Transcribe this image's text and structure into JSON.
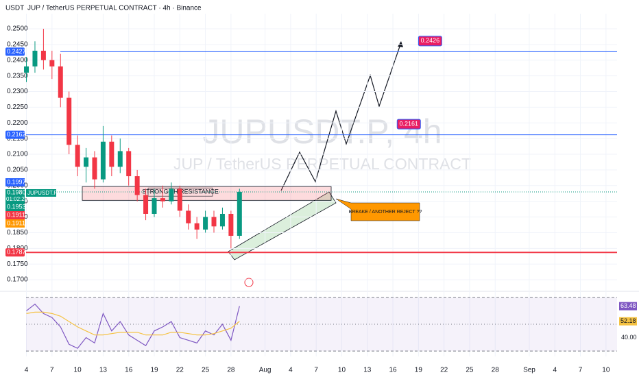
{
  "chart_data": {
    "type": "candlestick",
    "header": "JUP / TetherUS PERPETUAL CONTRACT · 4h · Binance",
    "currency": "USDT",
    "watermark": "JUPUSDT.P, 4h",
    "watermark_subtitle": "JUP / TetherUS PERPETUAL CONTRACT",
    "up_color": "#089981",
    "down_color": "#f23645",
    "x": [
      4,
      5,
      6,
      7,
      8,
      9,
      10,
      11,
      12,
      13,
      14,
      15,
      16,
      17,
      18,
      19,
      20,
      21,
      22,
      23,
      24,
      25,
      26,
      27,
      28,
      29
    ],
    "open": [
      0.236,
      0.238,
      0.243,
      0.24,
      0.238,
      0.228,
      0.213,
      0.206,
      0.209,
      0.202,
      0.214,
      0.206,
      0.211,
      0.203,
      0.197,
      0.191,
      0.196,
      0.195,
      0.199,
      0.192,
      0.188,
      0.186,
      0.19,
      0.187,
      0.191,
      0.184
    ],
    "high": [
      0.241,
      0.246,
      0.25,
      0.243,
      0.242,
      0.23,
      0.216,
      0.212,
      0.211,
      0.219,
      0.216,
      0.215,
      0.212,
      0.205,
      0.199,
      0.199,
      0.2,
      0.201,
      0.2,
      0.194,
      0.19,
      0.192,
      0.192,
      0.193,
      0.192,
      0.199
    ],
    "low": [
      0.233,
      0.236,
      0.237,
      0.234,
      0.225,
      0.21,
      0.203,
      0.201,
      0.199,
      0.201,
      0.203,
      0.204,
      0.2,
      0.195,
      0.189,
      0.19,
      0.193,
      0.194,
      0.19,
      0.186,
      0.183,
      0.185,
      0.185,
      0.186,
      0.18,
      0.183
    ],
    "close": [
      0.238,
      0.243,
      0.24,
      0.238,
      0.228,
      0.213,
      0.206,
      0.209,
      0.202,
      0.214,
      0.206,
      0.211,
      0.203,
      0.197,
      0.191,
      0.196,
      0.195,
      0.199,
      0.192,
      0.188,
      0.186,
      0.19,
      0.187,
      0.191,
      0.184,
      0.198
    ],
    "xlim": [
      0.9,
      73.3
    ],
    "ylim": [
      0.1674,
      0.2548
    ],
    "xticks": [
      4,
      7,
      10,
      13,
      16,
      19,
      22,
      25,
      28,
      {
        "value": 32,
        "label": "Aug"
      },
      {
        "value": 35,
        "label": "4"
      },
      {
        "value": 38,
        "label": "7"
      },
      {
        "value": 41,
        "label": "10"
      },
      {
        "value": 44,
        "label": "13"
      },
      {
        "value": 47,
        "label": "16"
      },
      {
        "value": 50,
        "label": "19"
      },
      {
        "value": 53,
        "label": "22"
      },
      {
        "value": 56,
        "label": "25"
      },
      {
        "value": 59,
        "label": "28"
      },
      {
        "value": 63,
        "label": "Sep"
      },
      {
        "value": 66,
        "label": "4"
      },
      {
        "value": 69,
        "label": "7"
      },
      {
        "value": 72,
        "label": "10"
      }
    ],
    "yticks": [
      {
        "value": 0.17,
        "label": "0.1700"
      },
      {
        "value": 0.175,
        "label": "0.1750"
      },
      {
        "value": 0.18,
        "label": "0.1800"
      },
      {
        "value": 0.185,
        "label": "0.1850"
      },
      {
        "value": 0.19,
        "label": "0.1900"
      },
      {
        "value": 0.195,
        "label": "0.1950"
      },
      {
        "value": 0.2,
        "label": "0.2000"
      },
      {
        "value": 0.205,
        "label": "0.2050"
      },
      {
        "value": 0.21,
        "label": "0.2100"
      },
      {
        "value": 0.215,
        "label": "0.2150"
      },
      {
        "value": 0.22,
        "label": "0.2200"
      },
      {
        "value": 0.225,
        "label": "0.2250"
      },
      {
        "value": 0.23,
        "label": "0.2300"
      },
      {
        "value": 0.235,
        "label": "0.2350"
      },
      {
        "value": 0.24,
        "label": "0.2400"
      },
      {
        "value": 0.245,
        "label": "0.2450"
      },
      {
        "value": 0.25,
        "label": "0.2500"
      }
    ],
    "levels": [
      {
        "value": 0.2427,
        "label": "0.2427",
        "color": "#2962ff"
      },
      {
        "value": 0.2162,
        "label": "0.2162",
        "color": "#2962ff"
      },
      {
        "value": 0.1787,
        "label": "0.1787",
        "color": "#f23645"
      }
    ],
    "price_labels": [
      {
        "value": 0.1997,
        "label": "0.1997",
        "color": "#2962ff"
      },
      {
        "value": 0.1953,
        "label": "0.1953",
        "color": "#089981"
      },
      {
        "value": 0.1911,
        "label": "0.1911",
        "color": "#f23645"
      },
      {
        "value": 0.1911,
        "label": "0.1911",
        "color": "#ff9800"
      }
    ],
    "last_price": {
      "value": 0.198,
      "label": "0.1980",
      "countdown": "01:02:20",
      "symbol": "JUPUSDT.P",
      "color": "#089981"
    },
    "targets": [
      {
        "value": 0.2426,
        "label": "0.2426",
        "x": 50
      },
      {
        "value": 0.2161,
        "label": "0.2161",
        "x": 47.5
      }
    ],
    "resistance_text": "STRONG 4H RESISTANCE",
    "callout": "BREAKE / ANOTHER REJECT ??",
    "rsi": {
      "values": [
        60,
        65,
        58,
        55,
        48,
        35,
        32,
        40,
        36,
        58,
        45,
        52,
        42,
        38,
        34,
        45,
        48,
        52,
        40,
        38,
        36,
        45,
        42,
        50,
        38,
        63.48
      ],
      "value_labels": [
        null,
        null,
        null,
        null,
        null,
        null,
        null,
        null,
        null,
        null,
        null,
        null,
        null,
        null,
        null,
        null,
        null,
        null,
        null,
        null,
        null,
        null,
        null,
        null,
        null,
        "63.48"
      ],
      "ma": [
        58,
        59,
        59,
        58,
        56,
        52,
        48,
        45,
        42,
        42,
        43,
        44,
        44,
        44,
        42,
        42,
        42,
        44,
        44,
        43,
        42,
        42,
        43,
        45,
        47,
        52.18
      ],
      "ma_labels": [
        null,
        null,
        null,
        null,
        null,
        null,
        null,
        null,
        null,
        null,
        null,
        null,
        null,
        null,
        null,
        null,
        null,
        null,
        null,
        null,
        null,
        null,
        null,
        null,
        null,
        "52.18"
      ],
      "color": "#7e57c2",
      "ma_color": "#f5c242",
      "ylim": [
        28,
        72
      ],
      "yticks": [
        {
          "value": 40,
          "label": "40.00"
        }
      ],
      "bands": [
        30,
        50,
        70
      ]
    }
  }
}
